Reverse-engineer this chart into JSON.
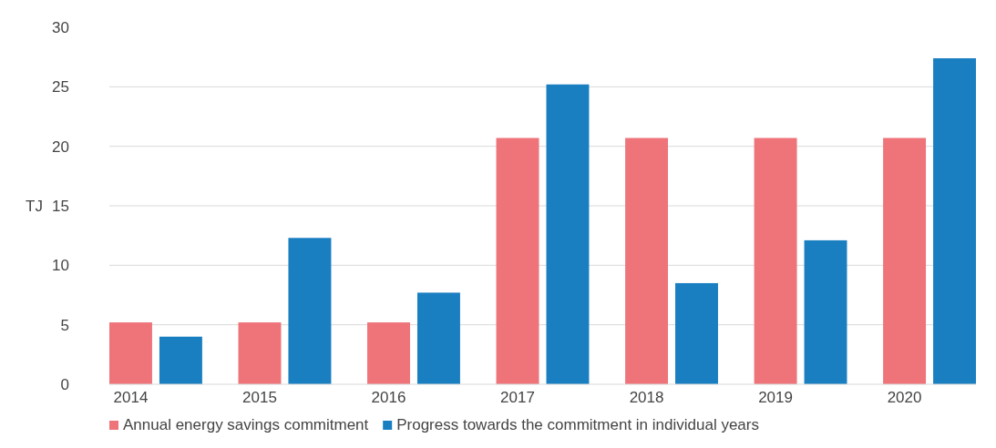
{
  "chart_data": {
    "type": "bar",
    "ylabel": "TJ",
    "categories": [
      "2014",
      "2015",
      "2016",
      "2017",
      "2018",
      "2019",
      "2020"
    ],
    "series": [
      {
        "name": "Annual energy savings commitment",
        "color": "#ee747a",
        "values": [
          5.2,
          5.2,
          5.2,
          20.7,
          20.7,
          20.7,
          20.7
        ]
      },
      {
        "name": "Progress towards the commitment in individual years",
        "color": "#1a7fc1",
        "values": [
          4.0,
          12.3,
          7.7,
          25.2,
          8.5,
          12.1,
          27.4
        ]
      }
    ],
    "ylim": [
      0,
      30
    ],
    "yticks": [
      0,
      5,
      10,
      15,
      20,
      25,
      30
    ],
    "grid": "y",
    "legend": "bottom"
  }
}
